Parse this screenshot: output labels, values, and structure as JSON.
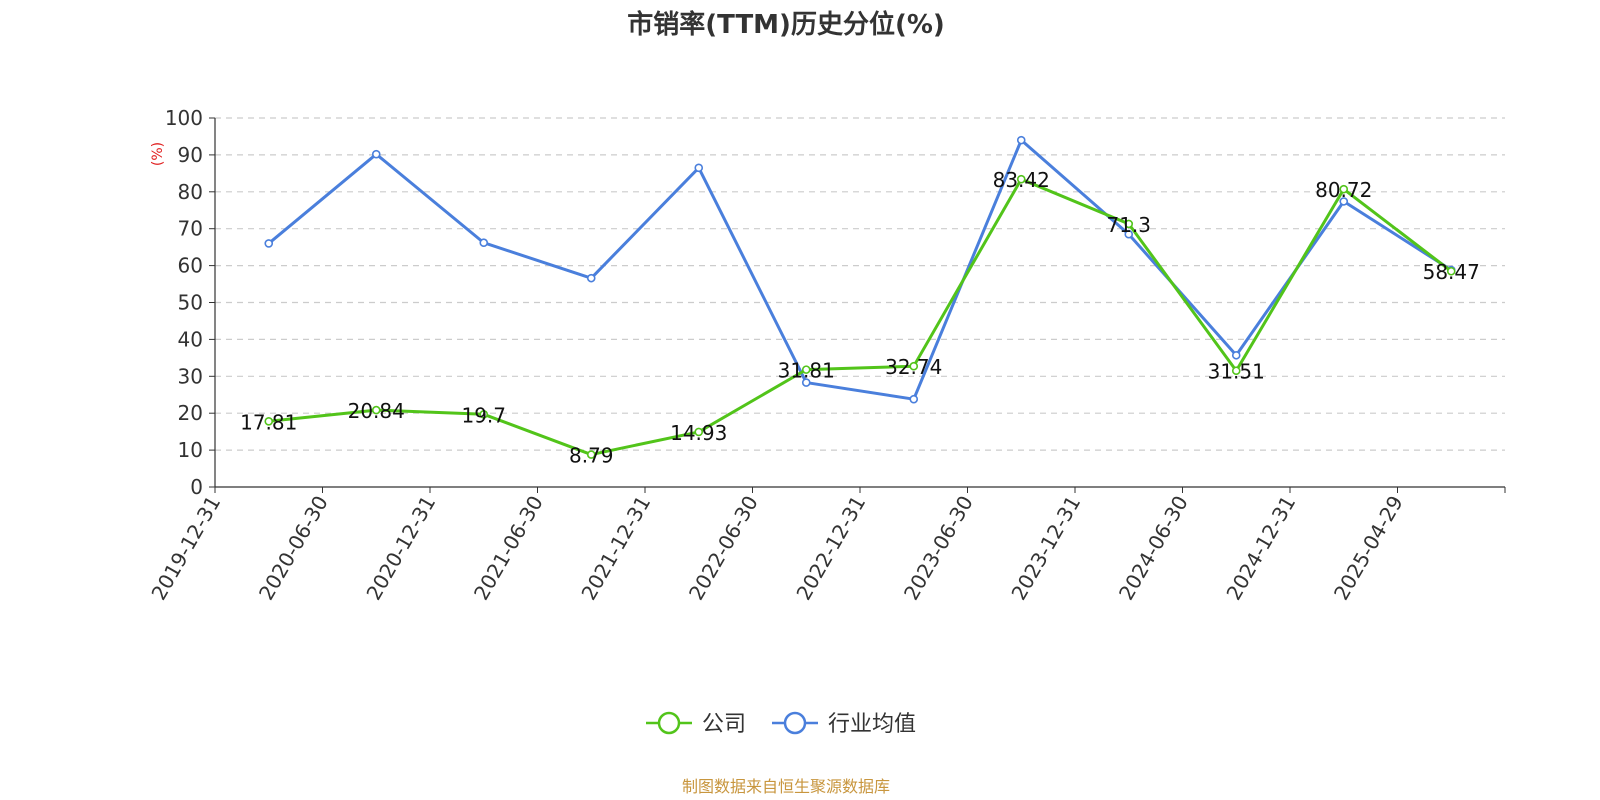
{
  "chart_data": {
    "type": "line",
    "title": "市销率(TTM)历史分位(%)",
    "ylabel": "(%)",
    "ylim": [
      0,
      100
    ],
    "yticks": [
      "0",
      "10",
      "20",
      "30",
      "40",
      "50",
      "60",
      "70",
      "80",
      "90",
      "100"
    ],
    "categories": [
      "2019-12-31",
      "2020-06-30",
      "2020-12-31",
      "2021-06-30",
      "2021-12-31",
      "2022-06-30",
      "2022-12-31",
      "2023-06-30",
      "2023-12-31",
      "2024-06-30",
      "2024-12-31",
      "2025-04-29"
    ],
    "grid": true,
    "legend_position": "bottom",
    "series": [
      {
        "name": "公司",
        "color": "#52c41a",
        "values": [
          17.81,
          20.84,
          19.7,
          8.79,
          14.93,
          31.81,
          32.74,
          83.42,
          71.3,
          31.51,
          80.72,
          58.47
        ],
        "labels": [
          "17.81",
          "20.84",
          "19.7",
          "8.79",
          "14.93",
          "31.81",
          "32.74",
          "83.42",
          "71.3",
          "31.51",
          "80.72",
          "58.47"
        ]
      },
      {
        "name": "行业均值",
        "color": "#4a7fdc",
        "values": [
          66.0,
          90.2,
          66.2,
          56.6,
          86.5,
          28.3,
          23.8,
          94.0,
          68.5,
          35.7,
          77.4,
          58.8
        ]
      }
    ],
    "source": "制图数据来自恒生聚源数据库",
    "source_color": "#c8963e",
    "ylabel_color": "#e02020"
  }
}
